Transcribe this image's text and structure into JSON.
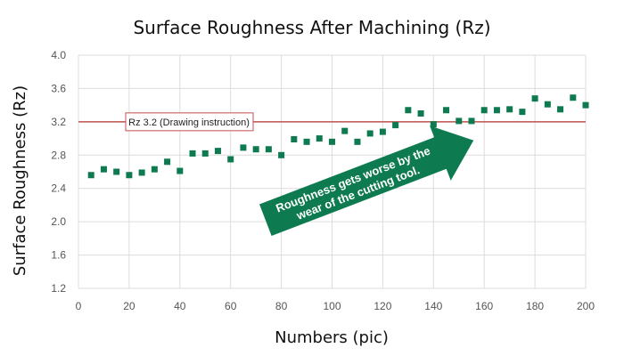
{
  "chart_data": {
    "type": "scatter",
    "title": "Surface Roughness After Machining (Rz)",
    "xlabel": "Numbers (pic)",
    "ylabel": "Surface Roughness (Rz)",
    "xlim": [
      0,
      200
    ],
    "ylim": [
      1.2,
      4.0
    ],
    "xticks": [
      0,
      20,
      40,
      60,
      80,
      100,
      120,
      140,
      160,
      180,
      200
    ],
    "yticks": [
      1.2,
      1.6,
      2.0,
      2.4,
      2.8,
      3.2,
      3.6,
      4.0
    ],
    "grid": true,
    "marker_color": "#0e7a4f",
    "reference_line": {
      "value": 3.2,
      "label": "Rz 3.2 (Drawing instruction)",
      "color": "#c0504d"
    },
    "annotation": {
      "text_line1": "Roughness gets worse by the",
      "text_line2": "wear of the cutting tool.",
      "color": "#0e7a4f"
    },
    "points": [
      {
        "x": 5,
        "y": 2.56
      },
      {
        "x": 10,
        "y": 2.63
      },
      {
        "x": 15,
        "y": 2.6
      },
      {
        "x": 20,
        "y": 2.56
      },
      {
        "x": 25,
        "y": 2.59
      },
      {
        "x": 30,
        "y": 2.63
      },
      {
        "x": 35,
        "y": 2.72
      },
      {
        "x": 40,
        "y": 2.61
      },
      {
        "x": 45,
        "y": 2.82
      },
      {
        "x": 50,
        "y": 2.82
      },
      {
        "x": 55,
        "y": 2.85
      },
      {
        "x": 60,
        "y": 2.75
      },
      {
        "x": 65,
        "y": 2.89
      },
      {
        "x": 70,
        "y": 2.87
      },
      {
        "x": 75,
        "y": 2.87
      },
      {
        "x": 80,
        "y": 2.8
      },
      {
        "x": 85,
        "y": 2.99
      },
      {
        "x": 90,
        "y": 2.96
      },
      {
        "x": 95,
        "y": 3.0
      },
      {
        "x": 100,
        "y": 2.96
      },
      {
        "x": 105,
        "y": 3.09
      },
      {
        "x": 110,
        "y": 2.96
      },
      {
        "x": 115,
        "y": 3.06
      },
      {
        "x": 120,
        "y": 3.08
      },
      {
        "x": 125,
        "y": 3.16
      },
      {
        "x": 130,
        "y": 3.34
      },
      {
        "x": 135,
        "y": 3.3
      },
      {
        "x": 140,
        "y": 3.17
      },
      {
        "x": 145,
        "y": 3.34
      },
      {
        "x": 150,
        "y": 3.21
      },
      {
        "x": 155,
        "y": 3.21
      },
      {
        "x": 160,
        "y": 3.34
      },
      {
        "x": 165,
        "y": 3.34
      },
      {
        "x": 170,
        "y": 3.35
      },
      {
        "x": 175,
        "y": 3.32
      },
      {
        "x": 180,
        "y": 3.48
      },
      {
        "x": 185,
        "y": 3.41
      },
      {
        "x": 190,
        "y": 3.35
      },
      {
        "x": 195,
        "y": 3.49
      },
      {
        "x": 200,
        "y": 3.4
      }
    ]
  }
}
